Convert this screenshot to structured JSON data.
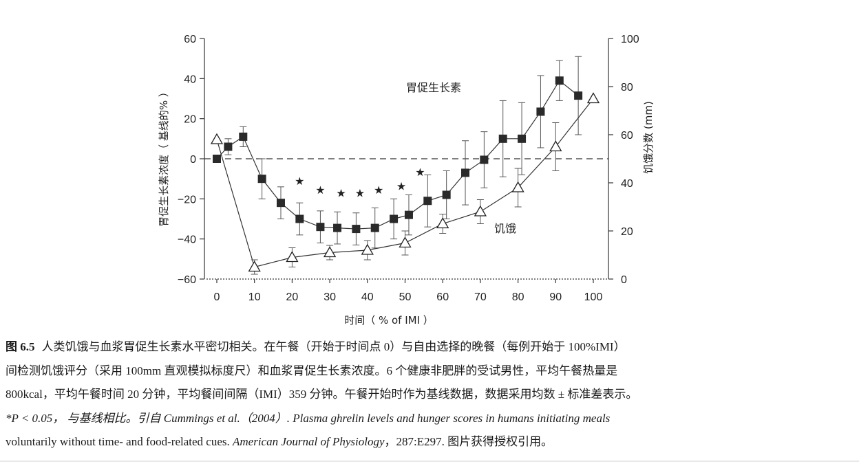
{
  "chart_data": {
    "type": "line",
    "x_label": "时间（ % of IMI ）",
    "y_left_label": "胃促生长素浓度（ 基线的% ）",
    "y_right_label": "饥饿分数 (mm)",
    "x_ticks": [
      "0",
      "10",
      "20",
      "30",
      "40",
      "50",
      "60",
      "70",
      "80",
      "90",
      "100"
    ],
    "y_left_ticks": [
      "60",
      "40",
      "20",
      "0",
      "−20",
      "−40",
      "−60"
    ],
    "y_right_ticks": [
      "100",
      "80",
      "60",
      "40",
      "20",
      "0"
    ],
    "xlim": [
      0,
      100
    ],
    "y_left_lim": [
      -60,
      60
    ],
    "y_right_lim": [
      0,
      100
    ],
    "significance_mark": "★",
    "series": [
      {
        "name": "胃促生长素",
        "axis": "left",
        "marker": "filled-square",
        "points": [
          {
            "x": 0,
            "y": 0,
            "err": 0
          },
          {
            "x": 3,
            "y": 6,
            "err": 4
          },
          {
            "x": 7,
            "y": 11,
            "err": 5
          },
          {
            "x": 12,
            "y": -10,
            "err": 10
          },
          {
            "x": 17,
            "y": -22,
            "err": 8
          },
          {
            "x": 22,
            "y": -30,
            "err": 8
          },
          {
            "x": 27.5,
            "y": -34,
            "err": 8
          },
          {
            "x": 32,
            "y": -34.5,
            "err": 8
          },
          {
            "x": 37,
            "y": -35,
            "err": 8
          },
          {
            "x": 42,
            "y": -34.5,
            "err": 10
          },
          {
            "x": 47,
            "y": -30,
            "err": 10
          },
          {
            "x": 51,
            "y": -28,
            "err": 10
          },
          {
            "x": 56,
            "y": -21,
            "err": 13
          },
          {
            "x": 61,
            "y": -18,
            "err": 12
          },
          {
            "x": 66,
            "y": -7,
            "err": 16
          },
          {
            "x": 71,
            "y": -0.5,
            "err": 14
          },
          {
            "x": 76,
            "y": 10,
            "err": 19
          },
          {
            "x": 81,
            "y": 10,
            "err": 18
          },
          {
            "x": 86,
            "y": 23.5,
            "err": 18
          },
          {
            "x": 91,
            "y": 39,
            "err": 10
          },
          {
            "x": 96,
            "y": 31.5,
            "err": 19.5
          }
        ]
      },
      {
        "name": "饥饿",
        "axis": "right",
        "marker": "open-triangle",
        "points": [
          {
            "x": 0,
            "y": 58,
            "err": 0
          },
          {
            "x": 10,
            "y": 5,
            "err": 3
          },
          {
            "x": 20,
            "y": 9,
            "err": 4
          },
          {
            "x": 30,
            "y": 11,
            "err": 3
          },
          {
            "x": 40,
            "y": 12,
            "err": 4
          },
          {
            "x": 50,
            "y": 15,
            "err": 5
          },
          {
            "x": 60,
            "y": 23,
            "err": 4
          },
          {
            "x": 70,
            "y": 28,
            "err": 5
          },
          {
            "x": 80,
            "y": 38,
            "err": 8
          },
          {
            "x": 90,
            "y": 55,
            "err": 10
          },
          {
            "x": 100,
            "y": 75,
            "err": 0
          }
        ]
      }
    ],
    "significant_x": [
      22,
      27.5,
      33,
      38,
      43,
      49,
      54
    ]
  },
  "caption": {
    "figure_number": "图 6.5",
    "line1": "人类饥饿与血浆胃促生长素水平密切相关。在午餐（开始于时间点 0）与自由选择的晚餐（每例开始于 100%IMI）",
    "line2": "间检测饥饿评分（采用 100mm 直观模拟标度尺）和血浆胃促生长素浓度。6 个健康非肥胖的受试男性，平均午餐热量是",
    "line3": "800kcal，平均午餐时间 20 分钟，平均餐间间隔（IMI）359 分钟。午餐开始时作为基线数据，数据采用均数 ± 标准差表示。",
    "line4_a": "*P < 0.05， 与基线相比。引自 Cummings et al.（2004）. Plasma ghrelin levels and hunger scores in humans initiating meals",
    "line5_a": "voluntarily without time- and food-related cues. ",
    "line5_journal": "American Journal of Physiology",
    "line5_b": "，287:E297. 图片获得授权引用。"
  }
}
